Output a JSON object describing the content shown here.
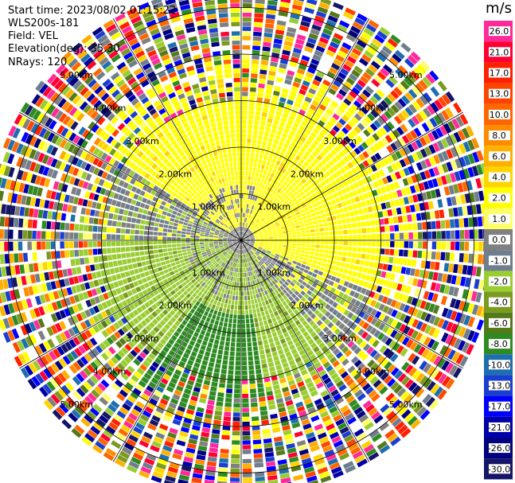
{
  "header": {
    "start_time": "Start time: 2023/08/02 01:15:22",
    "instrument": "WLS200s-181",
    "field": "Field: VEL",
    "elevation": "Elevation(deg): 35.30",
    "nrays": "NRays: 120"
  },
  "colorbar": {
    "unit": "m/s",
    "ticks": [
      "26.0",
      "21.0",
      "17.0",
      "13.0",
      "10.0",
      "8.0",
      "6.0",
      "4.0",
      "2.0",
      "1.0",
      "0.0",
      "-1.0",
      "-2.0",
      "-4.0",
      "-6.0",
      "-8.0",
      "-10.0",
      "-13.0",
      "-17.0",
      "-21.0",
      "-26.0",
      "-30.0"
    ],
    "colors": [
      "#ff2a9a",
      "#ff0033",
      "#ff2000",
      "#ff4400",
      "#ff6600",
      "#ff8c00",
      "#ffb000",
      "#ffd400",
      "#ffff00",
      "#ffff66",
      "#808080",
      "#6e7e8e",
      "#9acd32",
      "#7a9a20",
      "#557a1a",
      "#2e8b22",
      "#1e6fb0",
      "#1a3fd0",
      "#0000ff",
      "#0000aa",
      "#000080",
      "#15156a"
    ]
  },
  "chart_data": {
    "type": "heatmap",
    "projection": "polar PPI",
    "field": "VEL",
    "units": "m/s",
    "n_rays": 120,
    "range_rings_km": [
      1,
      2,
      3,
      4,
      5
    ],
    "ring_labels": [
      "1.00km",
      "2.00km",
      "3.00km",
      "4.00km",
      "5.00km"
    ],
    "spokes_deg": [
      0,
      30,
      60,
      90,
      120,
      150,
      180,
      210,
      240,
      270,
      300,
      330
    ],
    "max_range_km": 5.5,
    "value_range": [
      -30,
      26
    ],
    "pattern_summary": [
      {
        "region": "north / north-east, inner",
        "approx_value": 2.0,
        "description": "yellow (positive, away)"
      },
      {
        "region": "south / south-west, inner",
        "approx_value": -4.0,
        "description": "olive/green (negative, toward)"
      },
      {
        "region": "near origin band",
        "approx_value": 0.0,
        "description": "grey"
      },
      {
        "region": "outer ranges (> 3.5 km)",
        "approx_value": null,
        "description": "noisy, all colors"
      }
    ]
  }
}
